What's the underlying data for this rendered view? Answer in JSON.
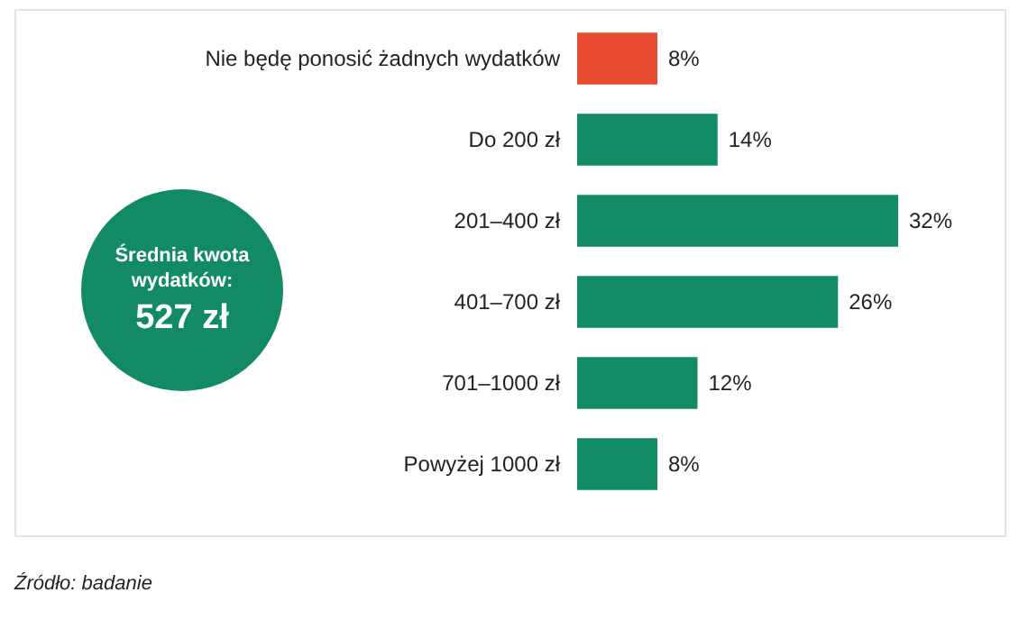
{
  "chart_data": {
    "type": "bar",
    "orientation": "horizontal",
    "categories": [
      "Nie będę ponosić żadnych wydatków",
      "Do 200 zł",
      "201–400 zł",
      "401–700 zł",
      "701–1000 zł",
      "Powyżej 1000 zł"
    ],
    "values": [
      8,
      14,
      32,
      26,
      12,
      8
    ],
    "colors": [
      "#e84a2f",
      "#128a66",
      "#128a66",
      "#128a66",
      "#128a66",
      "#128a66"
    ],
    "value_labels": [
      "8%",
      "14%",
      "32%",
      "26%",
      "12%",
      "8%"
    ],
    "annotations": [
      "Średnia kwota wydatków:",
      "527 zł",
      "Źródło: badanie"
    ]
  }
}
